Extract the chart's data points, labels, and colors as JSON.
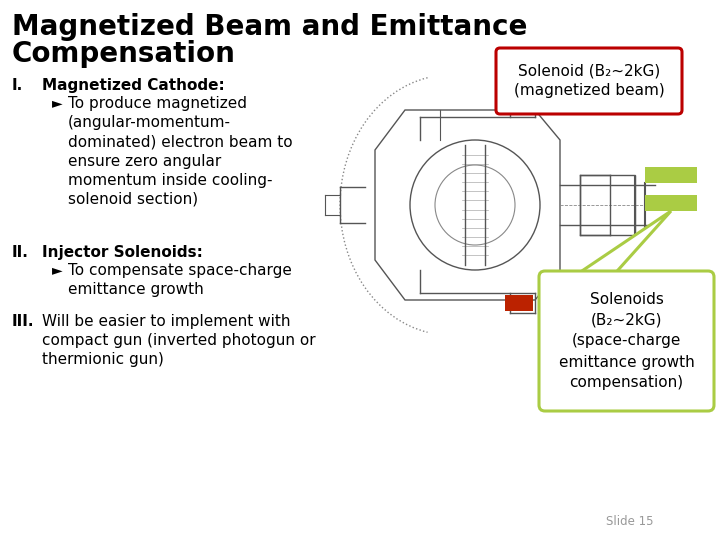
{
  "title_line1": "Magnetized Beam and Emittance",
  "title_line2": "Compensation",
  "title_fontsize": 20,
  "bg_color": "#ffffff",
  "text_color": "#000000",
  "main_text_fontsize": 11,
  "callout_fontsize": 11,
  "callout_top_text": "Solenoid (B₂~2kG)\n(magnetized beam)",
  "callout_top_color": "#bb0000",
  "callout_bottom_text": "Solenoids\n(B₂~2kG)\n(space-charge\nemittance growth\ncompensation)",
  "callout_bottom_color": "#aacc44",
  "red_rect_color": "#bb2200",
  "green_rect_color": "#aacc44",
  "slide_label": "Slide 15",
  "diagram_color": "#555555",
  "diagram_color2": "#888888"
}
